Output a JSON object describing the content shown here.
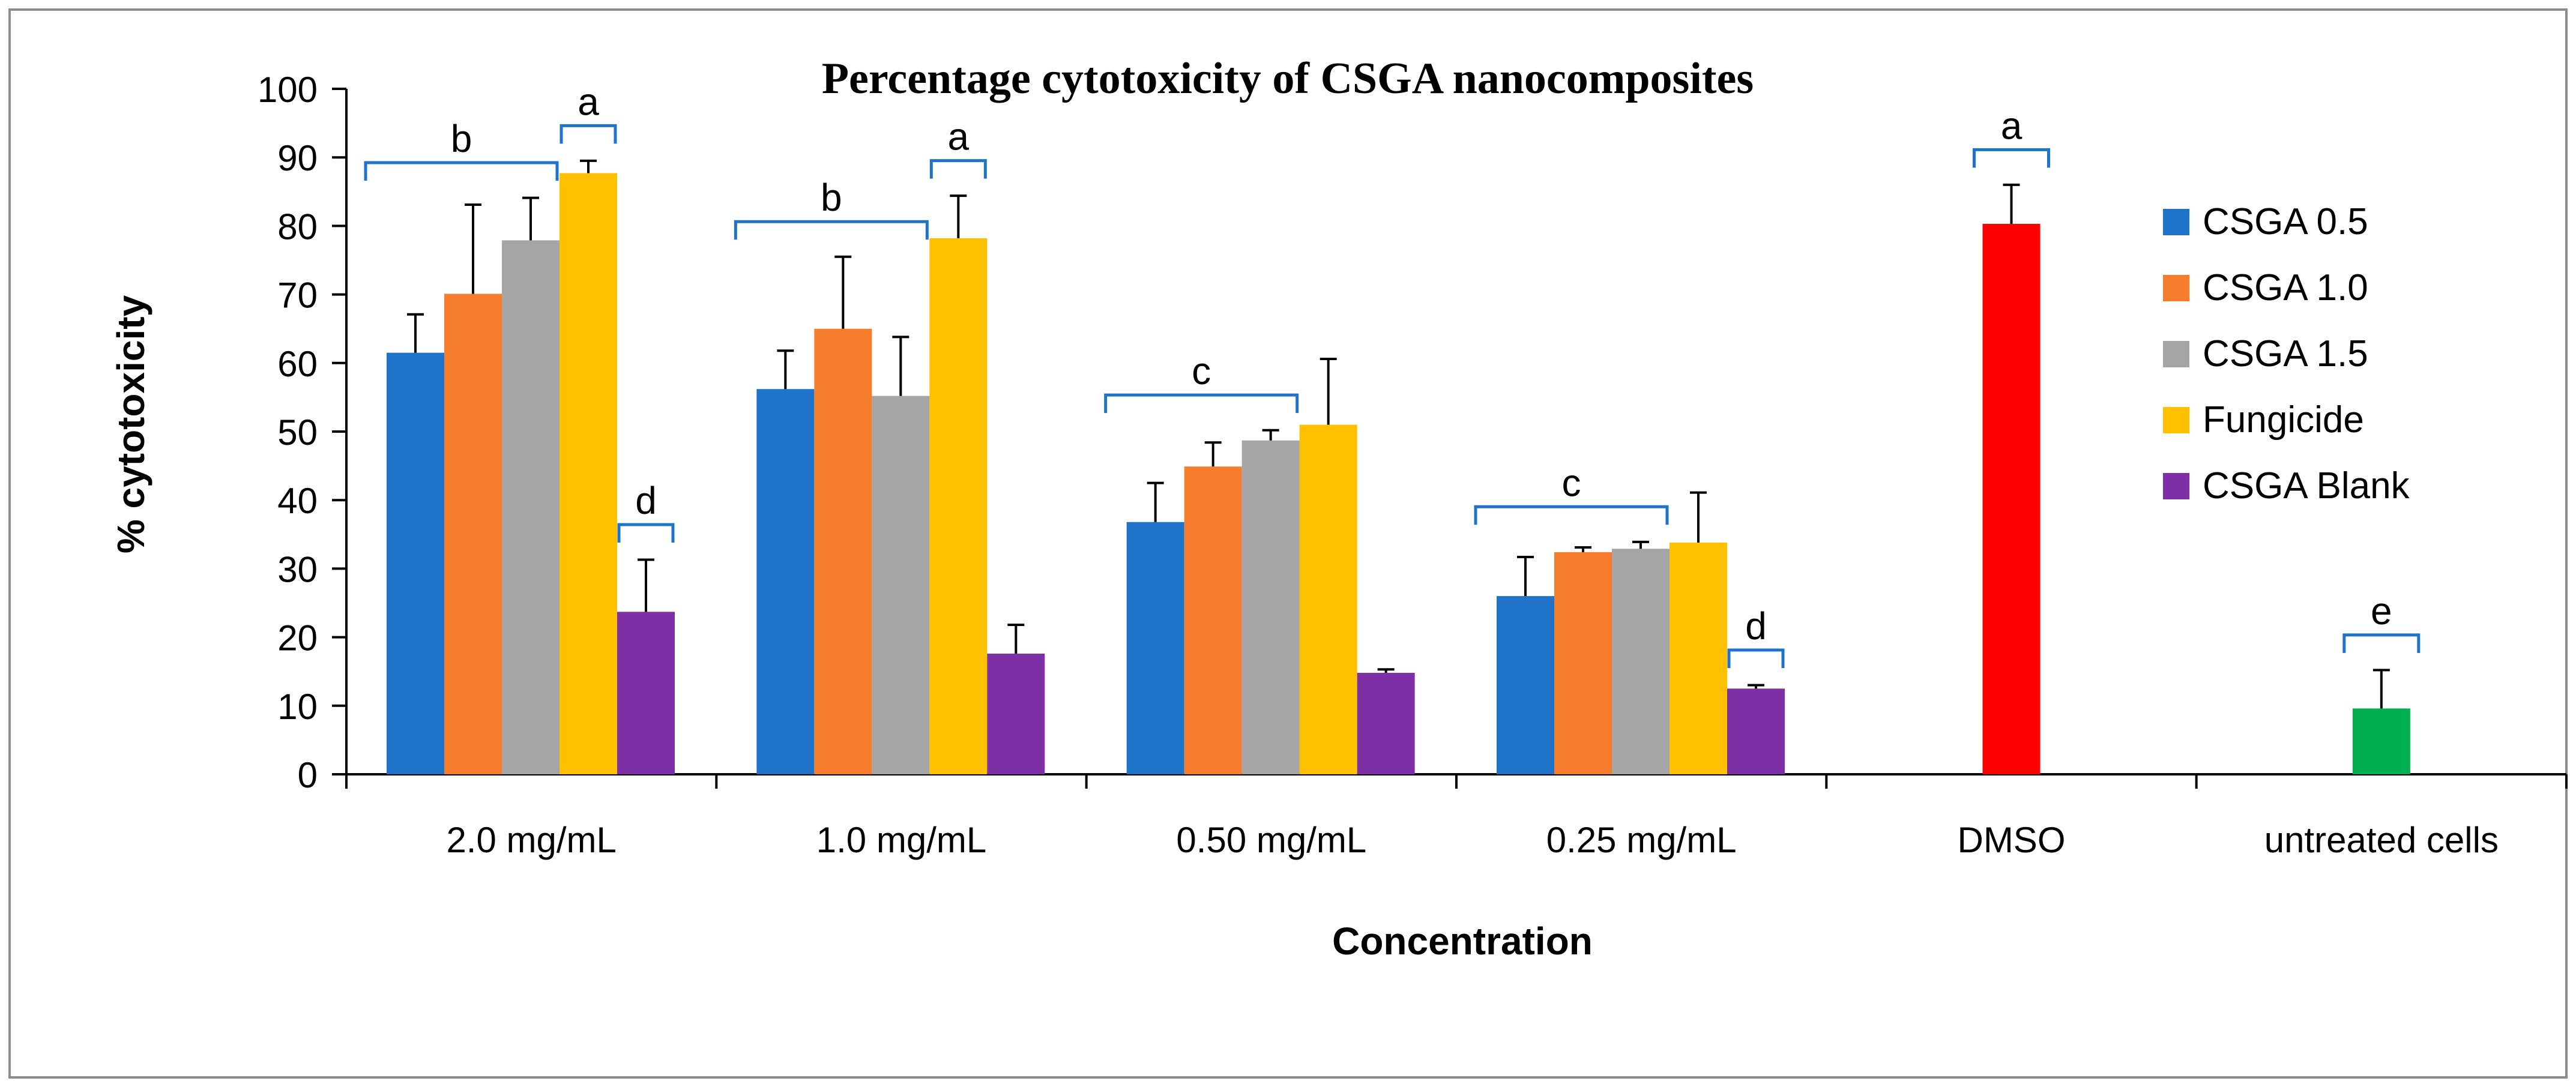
{
  "chart_data": {
    "type": "bar",
    "title": "Percentage cytotoxicity of CSGA nanocomposites",
    "xlabel": "Concentration",
    "ylabel": "% cytotoxicity",
    "ylim": [
      0,
      100
    ],
    "yticks": [
      0,
      10,
      20,
      30,
      40,
      50,
      60,
      70,
      80,
      90,
      100
    ],
    "categories": [
      "2.0 mg/mL",
      "1.0 mg/mL",
      "0.50 mg/mL",
      "0.25 mg/mL",
      "DMSO",
      "untreated cells"
    ],
    "series": [
      {
        "name": "CSGA 0.5",
        "color": "#1F73C9",
        "values": [
          61.5,
          56.2,
          36.8,
          26.0,
          null,
          null
        ],
        "errors": [
          5.6,
          5.6,
          5.7,
          5.7,
          null,
          null
        ]
      },
      {
        "name": "CSGA 1.0",
        "color": "#F77D2E",
        "values": [
          70.1,
          65.0,
          44.9,
          32.4,
          null,
          null
        ],
        "errors": [
          13.0,
          10.5,
          3.5,
          0.7,
          null,
          null
        ]
      },
      {
        "name": "CSGA 1.5",
        "color": "#A5A5A5",
        "values": [
          77.9,
          55.2,
          48.7,
          32.9,
          null,
          null
        ],
        "errors": [
          6.2,
          8.6,
          1.5,
          1.0,
          null,
          null
        ]
      },
      {
        "name": "Fungicide",
        "color": "#FFC000",
        "values": [
          87.7,
          78.2,
          51.0,
          33.8,
          null,
          null
        ],
        "errors": [
          1.8,
          6.2,
          9.6,
          7.3,
          null,
          null
        ]
      },
      {
        "name": "CSGA Blank",
        "color": "#7E2FA5",
        "values": [
          23.7,
          17.6,
          14.8,
          12.5,
          null,
          null
        ],
        "errors": [
          7.6,
          4.2,
          0.5,
          0.5,
          null,
          null
        ]
      }
    ],
    "control_bars": [
      {
        "category": "DMSO",
        "value": 80.3,
        "error": 5.7,
        "color": "#FF0000"
      },
      {
        "category": "untreated cells",
        "value": 9.6,
        "error": 5.6,
        "color": "#00B050"
      }
    ],
    "annotations": [
      {
        "label": "b",
        "category": 0,
        "from": 0,
        "to": 3
      },
      {
        "label": "a",
        "category": 0,
        "from": 3,
        "to": 4
      },
      {
        "label": "d",
        "category": 0,
        "from": 4,
        "to": 5
      },
      {
        "label": "b",
        "category": 1,
        "from": 0,
        "to": 3
      },
      {
        "label": "a",
        "category": 1,
        "from": 3,
        "to": 4
      },
      {
        "label": "c",
        "category": 2,
        "from": 0,
        "to": 3
      },
      {
        "label": "c",
        "category": 3,
        "from": 0,
        "to": 3
      },
      {
        "label": "d",
        "category": 3,
        "from": 4,
        "to": 5
      },
      {
        "label": "a",
        "category": 4,
        "from": 2,
        "to": 3
      },
      {
        "label": "e",
        "category": 5,
        "from": 0,
        "to": 1
      }
    ],
    "legend": {
      "position": "right",
      "entries": [
        "CSGA 0.5",
        "CSGA 1.0",
        "CSGA 1.5",
        "Fungicide",
        "CSGA Blank"
      ]
    },
    "grid": false,
    "bracket_color": "#1F73C9",
    "error_bar_color": "#000000"
  }
}
